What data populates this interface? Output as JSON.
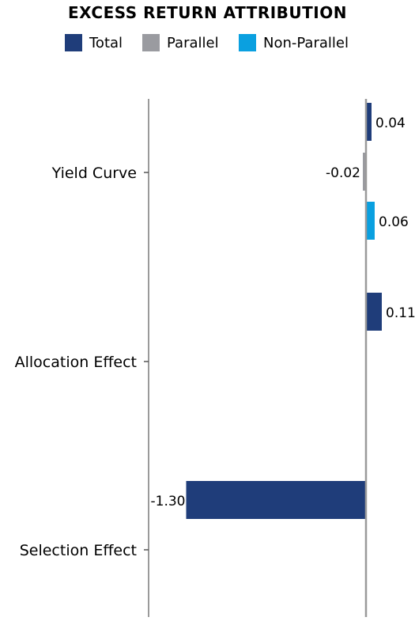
{
  "chart_data": {
    "type": "bar",
    "orientation": "horizontal",
    "title": "EXCESS RETURN ATTRIBUTION",
    "categories": [
      "Yield Curve",
      "Allocation Effect",
      "Selection Effect"
    ],
    "series": [
      {
        "name": "Total",
        "color": "#1f3d7a",
        "values": [
          0.04,
          0.11,
          -1.3
        ],
        "labels": [
          "0.04",
          "0.11",
          "-1.30"
        ]
      },
      {
        "name": "Parallel",
        "color": "#9a9ba0",
        "values": [
          -0.02,
          null,
          null
        ],
        "labels": [
          "-0.02",
          null,
          null
        ]
      },
      {
        "name": "Non-Parallel",
        "color": "#0aa0e0",
        "values": [
          0.06,
          null,
          null
        ],
        "labels": [
          "0.06",
          null,
          null
        ]
      }
    ],
    "legend_position": "top",
    "grid": false
  }
}
